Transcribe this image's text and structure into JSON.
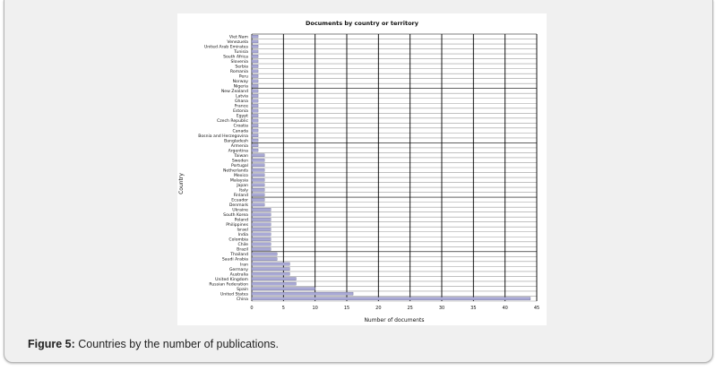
{
  "caption": {
    "label": "Figure 5:",
    "text": " Countries by the number of publications."
  },
  "colors": {
    "bar": "#a9a9d6",
    "bar_stroke": "#55557a",
    "grid": "#000000",
    "row_line": "#9a9a9a"
  },
  "chart_data": {
    "type": "bar",
    "orientation": "horizontal",
    "title": "Documents by country or territory",
    "xlabel": "Number of documents",
    "ylabel": "Country",
    "xlim": [
      0,
      45
    ],
    "xticks": [
      0,
      5,
      10,
      15,
      20,
      25,
      30,
      35,
      40,
      45
    ],
    "grid": true,
    "categories": [
      "Viet Nam",
      "Venezuela",
      "United Arab Emirates",
      "Tunisia",
      "South Africa",
      "Slovenia",
      "Serbia",
      "Romania",
      "Peru",
      "Norway",
      "Nigeria",
      "New Zealand",
      "Latvia",
      "Ghana",
      "France",
      "Estonia",
      "Egypt",
      "Czech Republic",
      "Croatia",
      "Canada",
      "Bosnia and Herzegovina",
      "Bangladesh",
      "Armenia",
      "Argentina",
      "Taiwan",
      "Sweden",
      "Portugal",
      "Netherlands",
      "Mexico",
      "Malaysia",
      "Japan",
      "Italy",
      "Finland",
      "Ecuador",
      "Denmark",
      "Ukraine",
      "South Korea",
      "Poland",
      "Philippines",
      "Israel",
      "India",
      "Colombia",
      "Chile",
      "Brazil",
      "Thailand",
      "Saudi Arabia",
      "Iran",
      "Germany",
      "Australia",
      "United Kingdom",
      "Russian Federation",
      "Spain",
      "United States",
      "China"
    ],
    "values": [
      1,
      1,
      1,
      1,
      1,
      1,
      1,
      1,
      1,
      1,
      1,
      1,
      1,
      1,
      1,
      1,
      1,
      1,
      1,
      1,
      1,
      1,
      1,
      1,
      2,
      2,
      2,
      2,
      2,
      2,
      2,
      2,
      2,
      2,
      2,
      3,
      3,
      3,
      3,
      3,
      3,
      3,
      3,
      3,
      4,
      4,
      6,
      6,
      6,
      7,
      7,
      10,
      16,
      44
    ]
  }
}
